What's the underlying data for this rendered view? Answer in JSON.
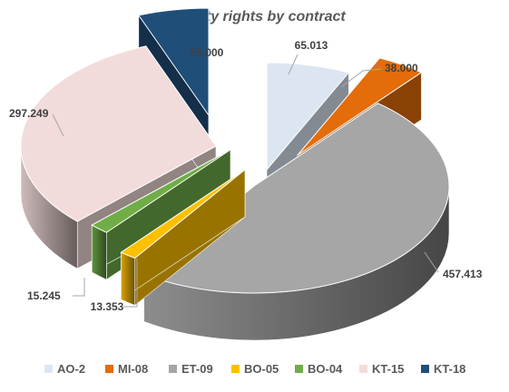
{
  "chart_data": {
    "type": "pie",
    "title": "Property rights by contract",
    "categories": [
      "AO-2",
      "MI-08",
      "ET-09",
      "BO-05",
      "BO-04",
      "KT-15",
      "KT-18"
    ],
    "values": [
      65.013,
      38.0,
      457.413,
      13.353,
      15.245,
      297.249,
      55.0
    ],
    "value_labels": [
      "65.013",
      "38.000",
      "457.413",
      "13.353",
      "15.245",
      "297.249",
      "55.000"
    ],
    "colors": [
      "#DCE6F2",
      "#E46C0A",
      "#A6A6A6",
      "#FFC000",
      "#70AD47",
      "#F2DCDB",
      "#1F4E79"
    ],
    "exploded": true,
    "three_d": true,
    "legend_position": "bottom",
    "grid": false
  }
}
